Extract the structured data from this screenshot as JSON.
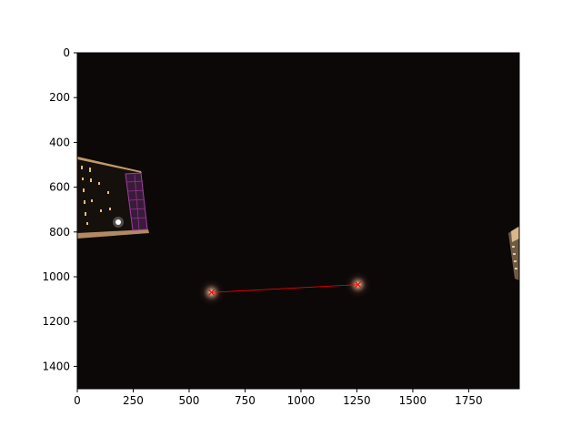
{
  "chart_data": {
    "type": "scatter",
    "title": "",
    "xlabel": "",
    "ylabel": "",
    "xlim": [
      0,
      1976
    ],
    "ylim": [
      1500,
      0
    ],
    "y_inverted": true,
    "grid": false,
    "x_ticks": [
      0,
      250,
      500,
      750,
      1000,
      1250,
      1500,
      1750
    ],
    "y_ticks": [
      0,
      200,
      400,
      600,
      800,
      1000,
      1200,
      1400
    ],
    "background_image": "night-sky-photo",
    "series": [
      {
        "marker": "x",
        "color": "#ff0000",
        "line": true,
        "points": [
          {
            "x": 600,
            "y": 1070
          },
          {
            "x": 1255,
            "y": 1035
          }
        ]
      }
    ]
  }
}
